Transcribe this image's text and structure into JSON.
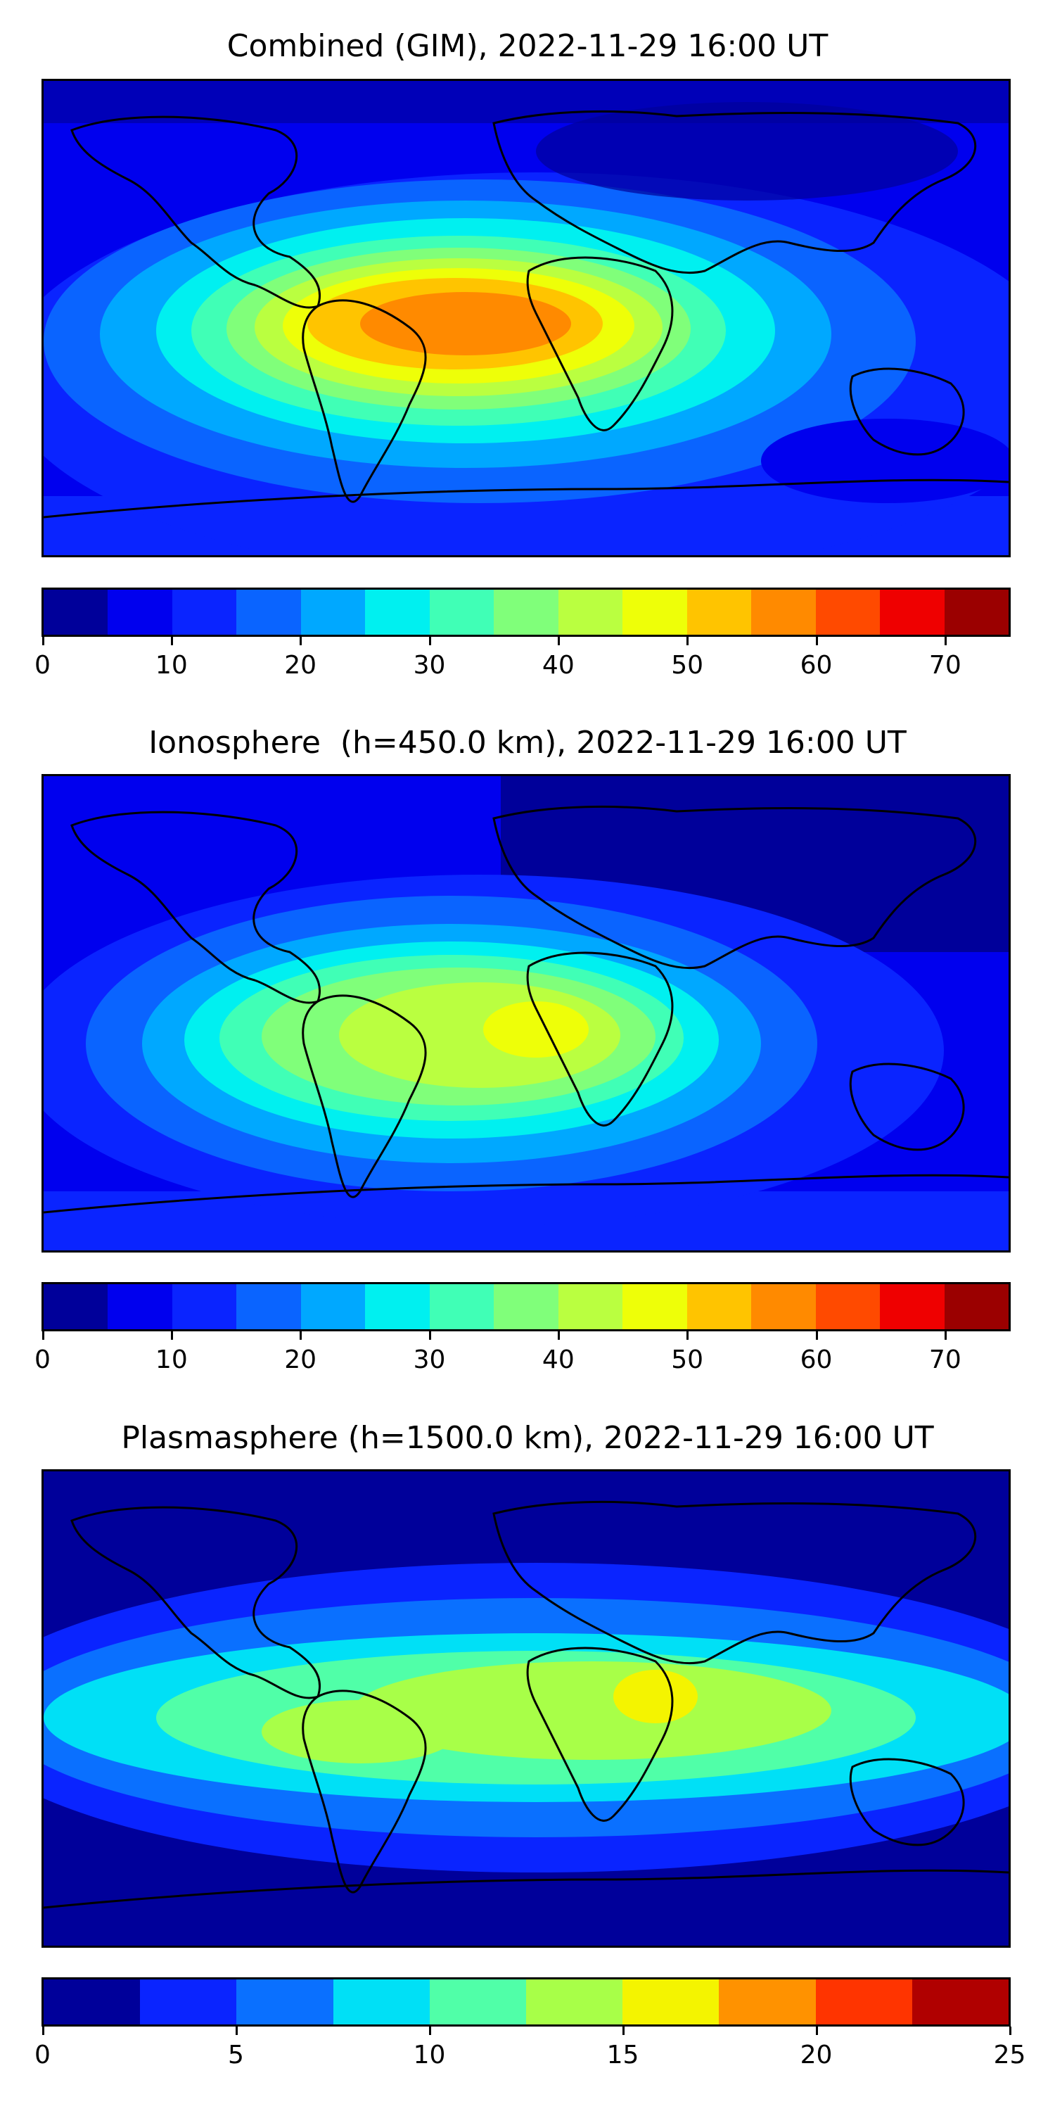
{
  "panels": [
    {
      "title": "Combined (GIM), 2022-11-29 16:00 UT",
      "colorbar": {
        "colors": [
          "#00009a",
          "#0000ee",
          "#0a24ff",
          "#0a64ff",
          "#00a8ff",
          "#00f0f0",
          "#40ffb6",
          "#80ff7a",
          "#baff40",
          "#eeff08",
          "#ffc400",
          "#ff8a00",
          "#ff4a00",
          "#ef0000",
          "#9b0000"
        ],
        "ticks": [
          "0",
          "10",
          "20",
          "30",
          "40",
          "50",
          "60",
          "70"
        ],
        "tick_values": [
          0,
          10,
          20,
          30,
          40,
          50,
          60,
          70
        ],
        "min": 0,
        "max": 75
      }
    },
    {
      "title": "Ionosphere  (h=450.0 km), 2022-11-29 16:00 UT",
      "colorbar": {
        "colors": [
          "#00009a",
          "#0000ee",
          "#0a24ff",
          "#0a64ff",
          "#00a8ff",
          "#00f0f0",
          "#40ffb6",
          "#80ff7a",
          "#baff40",
          "#eeff08",
          "#ffc400",
          "#ff8a00",
          "#ff4a00",
          "#ef0000",
          "#9b0000"
        ],
        "ticks": [
          "0",
          "10",
          "20",
          "30",
          "40",
          "50",
          "60",
          "70"
        ],
        "tick_values": [
          0,
          10,
          20,
          30,
          40,
          50,
          60,
          70
        ],
        "min": 0,
        "max": 75
      }
    },
    {
      "title": "Plasmasphere (h=1500.0 km), 2022-11-29 16:00 UT",
      "colorbar": {
        "colors": [
          "#00009a",
          "#0a24ff",
          "#0a70ff",
          "#00e0f6",
          "#50ffa8",
          "#a8ff48",
          "#f4f400",
          "#ff9200",
          "#ff3400",
          "#b00000"
        ],
        "ticks": [
          "0",
          "5",
          "10",
          "15",
          "20",
          "25"
        ],
        "tick_values": [
          0,
          5,
          10,
          15,
          20,
          25
        ],
        "min": 0,
        "max": 25
      }
    }
  ]
}
